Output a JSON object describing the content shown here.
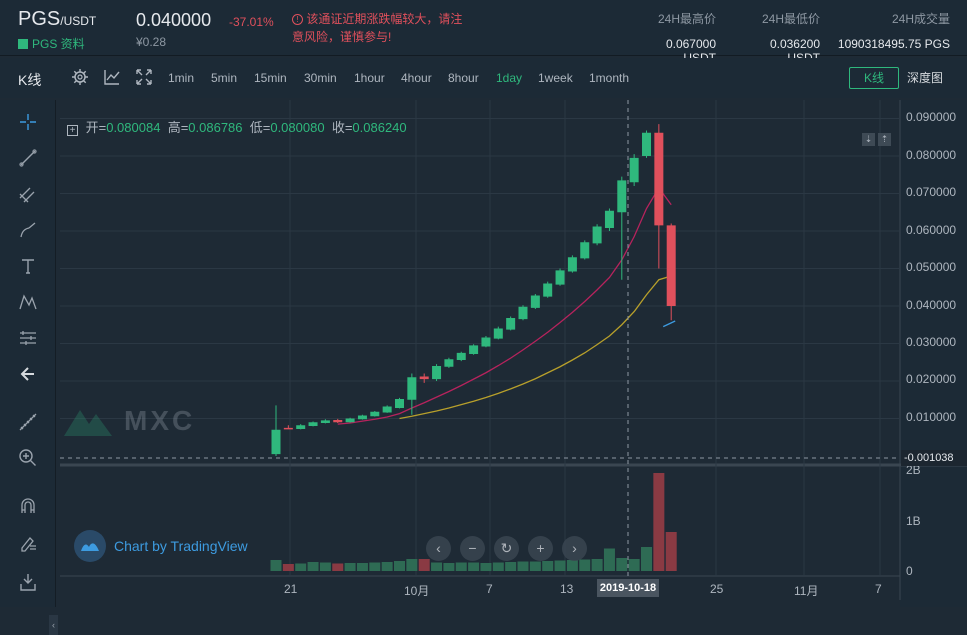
{
  "header": {
    "symbol": "PGS",
    "quote": "/USDT",
    "info_link": "PGS 资料",
    "price": "0.040000",
    "price_cny": "¥0.28",
    "change": "-37.01%",
    "warning": "该通证近期涨跌幅较大，请注意风险，谨慎参与!",
    "high_label": "24H最高价",
    "high_value": "0.067000 USDT",
    "low_label": "24H最低价",
    "low_value": "0.036200 USDT",
    "volume_label": "24H成交量",
    "volume_value": "1090318495.75 PGS"
  },
  "toolbar": {
    "title": "K线",
    "intervals": [
      "1min",
      "5min",
      "15min",
      "30min",
      "1hour",
      "4hour",
      "8hour",
      "1day",
      "1week",
      "1month"
    ],
    "active_interval": "1day",
    "tab_kline": "K线",
    "tab_depth": "深度图"
  },
  "ohlc": {
    "open_label": "开=",
    "open": "0.080084",
    "high_label": "高=",
    "high": "0.086786",
    "low_label": "低=",
    "low": "0.080080",
    "close_label": "收=",
    "close": "0.086240"
  },
  "watermark": "MXC",
  "tradingview": "Chart by TradingView",
  "crosshair": {
    "price": "-0.001038",
    "date": "2019-10-18"
  },
  "colors": {
    "up": "#2fb87d",
    "down": "#e0505c",
    "ma_fast": "#b7235d",
    "ma_slow": "#b8a02b"
  },
  "chart_data": {
    "type": "candlestick",
    "price_axis": [
      "0.090000",
      "0.080000",
      "0.070000",
      "0.060000",
      "0.050000",
      "0.040000",
      "0.030000",
      "0.020000",
      "0.010000"
    ],
    "volume_axis": [
      "2B",
      "1B",
      "0"
    ],
    "x_axis": [
      "21",
      "10月",
      "7",
      "13",
      "25",
      "11月",
      "7"
    ],
    "candles": [
      {
        "o": 0.0005,
        "h": 0.0135,
        "l": 0.0,
        "c": 0.007
      },
      {
        "o": 0.0075,
        "h": 0.0082,
        "l": 0.0072,
        "c": 0.0074
      },
      {
        "o": 0.0072,
        "h": 0.0085,
        "l": 0.0071,
        "c": 0.0082
      },
      {
        "o": 0.008,
        "h": 0.0092,
        "l": 0.0079,
        "c": 0.009
      },
      {
        "o": 0.0088,
        "h": 0.0098,
        "l": 0.0087,
        "c": 0.0095
      },
      {
        "o": 0.0096,
        "h": 0.0099,
        "l": 0.0088,
        "c": 0.009
      },
      {
        "o": 0.009,
        "h": 0.0102,
        "l": 0.0089,
        "c": 0.01
      },
      {
        "o": 0.0098,
        "h": 0.011,
        "l": 0.0097,
        "c": 0.0108
      },
      {
        "o": 0.0106,
        "h": 0.012,
        "l": 0.0105,
        "c": 0.0118
      },
      {
        "o": 0.0116,
        "h": 0.0135,
        "l": 0.0115,
        "c": 0.0132
      },
      {
        "o": 0.0128,
        "h": 0.0155,
        "l": 0.0127,
        "c": 0.0152
      },
      {
        "o": 0.015,
        "h": 0.022,
        "l": 0.011,
        "c": 0.021
      },
      {
        "o": 0.0212,
        "h": 0.022,
        "l": 0.0195,
        "c": 0.0205
      },
      {
        "o": 0.0205,
        "h": 0.0245,
        "l": 0.02,
        "c": 0.024
      },
      {
        "o": 0.0238,
        "h": 0.0262,
        "l": 0.0235,
        "c": 0.0258
      },
      {
        "o": 0.0256,
        "h": 0.0278,
        "l": 0.0253,
        "c": 0.0275
      },
      {
        "o": 0.0272,
        "h": 0.0298,
        "l": 0.027,
        "c": 0.0295
      },
      {
        "o": 0.0292,
        "h": 0.032,
        "l": 0.029,
        "c": 0.0316
      },
      {
        "o": 0.0313,
        "h": 0.0345,
        "l": 0.0311,
        "c": 0.034
      },
      {
        "o": 0.0337,
        "h": 0.0372,
        "l": 0.0335,
        "c": 0.0368
      },
      {
        "o": 0.0365,
        "h": 0.0402,
        "l": 0.0362,
        "c": 0.0398
      },
      {
        "o": 0.0395,
        "h": 0.0432,
        "l": 0.0392,
        "c": 0.0428
      },
      {
        "o": 0.0425,
        "h": 0.0465,
        "l": 0.0422,
        "c": 0.046
      },
      {
        "o": 0.0457,
        "h": 0.05,
        "l": 0.0454,
        "c": 0.0495
      },
      {
        "o": 0.0492,
        "h": 0.0535,
        "l": 0.0489,
        "c": 0.053
      },
      {
        "o": 0.0527,
        "h": 0.0575,
        "l": 0.0524,
        "c": 0.057
      },
      {
        "o": 0.0567,
        "h": 0.0618,
        "l": 0.0562,
        "c": 0.0612
      },
      {
        "o": 0.0608,
        "h": 0.066,
        "l": 0.06,
        "c": 0.0654
      },
      {
        "o": 0.065,
        "h": 0.0745,
        "l": 0.047,
        "c": 0.0735
      },
      {
        "o": 0.073,
        "h": 0.0805,
        "l": 0.072,
        "c": 0.0795
      },
      {
        "o": 0.08,
        "h": 0.0868,
        "l": 0.0795,
        "c": 0.0862
      },
      {
        "o": 0.0862,
        "h": 0.0885,
        "l": 0.05,
        "c": 0.0615
      },
      {
        "o": 0.0615,
        "h": 0.062,
        "l": 0.0362,
        "c": 0.04
      }
    ],
    "volume": [
      0.22,
      0.14,
      0.15,
      0.18,
      0.17,
      0.15,
      0.16,
      0.16,
      0.17,
      0.18,
      0.2,
      0.24,
      0.24,
      0.17,
      0.16,
      0.17,
      0.17,
      0.16,
      0.17,
      0.18,
      0.19,
      0.19,
      0.2,
      0.21,
      0.22,
      0.23,
      0.24,
      0.45,
      0.26,
      0.24,
      0.48,
      1.96,
      0.78
    ],
    "ma_fast": [
      null,
      null,
      null,
      null,
      null,
      0.0085,
      0.0088,
      0.0093,
      0.0098,
      0.0104,
      0.0113,
      0.0128,
      0.0142,
      0.0157,
      0.0172,
      0.0188,
      0.0205,
      0.0222,
      0.0241,
      0.0261,
      0.0283,
      0.0306,
      0.033,
      0.0356,
      0.0383,
      0.0412,
      0.0443,
      0.0476,
      0.0523,
      0.0585,
      0.066,
      0.0715,
      0.067
    ],
    "ma_slow": [
      null,
      null,
      null,
      null,
      null,
      null,
      null,
      null,
      null,
      null,
      0.01,
      0.0106,
      0.0113,
      0.012,
      0.0128,
      0.0137,
      0.0146,
      0.0156,
      0.0167,
      0.0179,
      0.0192,
      0.0206,
      0.0222,
      0.0238,
      0.0256,
      0.0275,
      0.0297,
      0.032,
      0.035,
      0.0385,
      0.043,
      0.047,
      0.048
    ],
    "ma_short_end": [
      0.0345,
      0.036
    ]
  }
}
